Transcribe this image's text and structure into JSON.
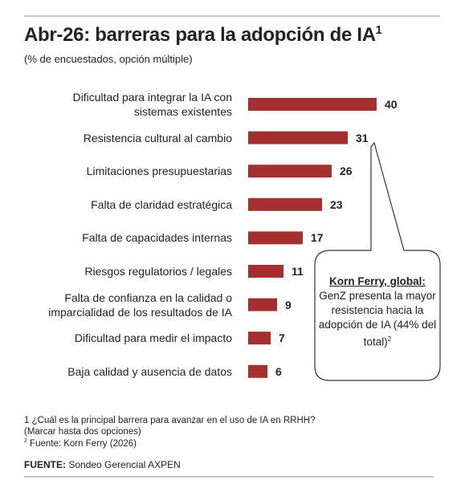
{
  "chart_data": {
    "type": "bar",
    "orientation": "horizontal",
    "title": "Abr-26: barreras para la adopción de IA",
    "title_note_ref": "1",
    "subtitle": "(% de encuestados, opción múltiple)",
    "categories": [
      "Dificultad para integrar la IA con\nsistemas existentes",
      "Resistencia cultural al cambio",
      "Limitaciones presupuestarias",
      "Falta de claridad estratégica",
      "Falta de capacidades internas",
      "Riesgos regulatorios / legales",
      "Falta de confianza en la calidad o\nimparcialidad de los resultados de IA",
      "Dificultad para medir el impacto",
      "Baja calidad y ausencia de datos"
    ],
    "values": [
      40,
      31,
      26,
      23,
      17,
      11,
      9,
      7,
      6
    ],
    "color": "#a3302e",
    "annotation": {
      "title": "Korn Ferry, global:",
      "text": "GenZ presenta la mayor resistencia hacia la adopción de IA (44% del total)",
      "note_ref": "2"
    },
    "footnotes": [
      {
        "marker": "1",
        "text": "¿Cuál es la principal barrera para avanzar en el uso de IA en RRHH?\n(Marcar hasta dos opciones)"
      },
      {
        "marker": "2",
        "text": "Fuente: Korn Ferry (2026)"
      }
    ],
    "source_label": "FUENTE:",
    "source": "Sondeo Gerencial AXPEN"
  }
}
